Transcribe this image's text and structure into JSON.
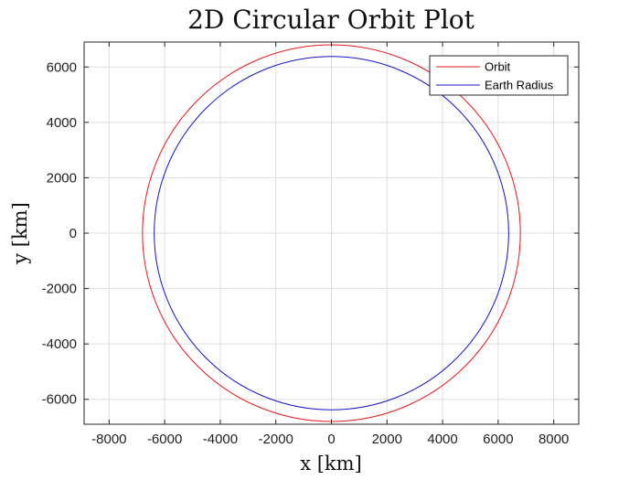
{
  "chart_data": {
    "type": "line",
    "title": "2D Circular Orbit Plot",
    "xlabel": "x [km]",
    "ylabel": "y [km]",
    "xlim": [
      -8900,
      8900
    ],
    "ylim": [
      -6900,
      6900
    ],
    "xticks": [
      -8000,
      -6000,
      -4000,
      -2000,
      0,
      2000,
      4000,
      6000,
      8000
    ],
    "yticks": [
      -6000,
      -4000,
      -2000,
      0,
      2000,
      4000,
      6000
    ],
    "grid": true,
    "legend_position": "top-right",
    "series": [
      {
        "name": "Orbit",
        "shape": "circle",
        "center": [
          0,
          0
        ],
        "radius": 6800,
        "color": "#e31a1c"
      },
      {
        "name": "Earth Radius",
        "shape": "circle",
        "center": [
          0,
          0
        ],
        "radius": 6378,
        "color": "#1515c8"
      }
    ]
  }
}
